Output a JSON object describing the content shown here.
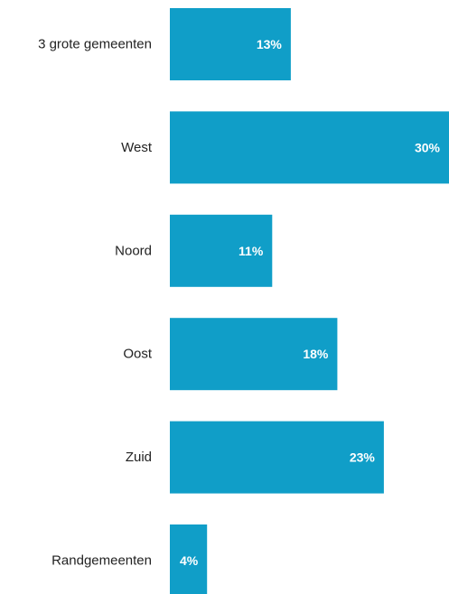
{
  "chart_data": {
    "type": "bar",
    "orientation": "horizontal",
    "categories": [
      "3 grote gemeenten",
      "West",
      "Noord",
      "Oost",
      "Zuid",
      "Randgemeenten"
    ],
    "values": [
      13,
      30,
      11,
      18,
      23,
      4
    ],
    "value_labels": [
      "13%",
      "30%",
      "11%",
      "18%",
      "23%",
      "4%"
    ],
    "unit": "%",
    "bar_color": "#109ec8",
    "label_color": "#ffffff",
    "title": "",
    "xlabel": "",
    "ylabel": "",
    "grid": false,
    "legend": "none"
  }
}
